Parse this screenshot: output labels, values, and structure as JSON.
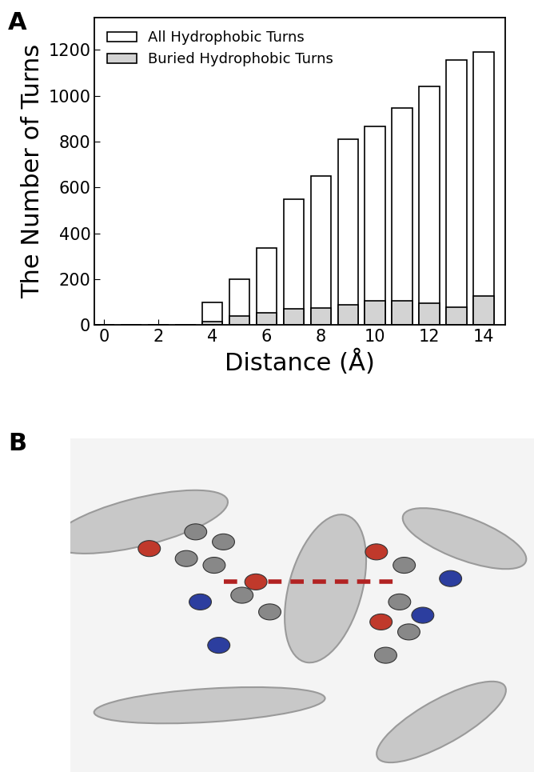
{
  "panel_labels": [
    "A",
    "B"
  ],
  "chart_data": {
    "type": "bar",
    "stacked": false,
    "legend": "upper left",
    "x": [
      0,
      1,
      2,
      3,
      4,
      5,
      6,
      7,
      8,
      9,
      10,
      11,
      12,
      13,
      14
    ],
    "x_label": "Distance (Å)",
    "y_label": "The Number of Turns",
    "series": [
      {
        "name": "All Hydrophobic Turns",
        "color": "#ffffff",
        "values": [
          0,
          0,
          0,
          2,
          100,
          200,
          335,
          550,
          650,
          810,
          865,
          945,
          1040,
          1155,
          1190
        ]
      },
      {
        "name": "Buried Hydrophobic Turns",
        "color": "#d3d3d3",
        "values": [
          0,
          0,
          0,
          0,
          15,
          40,
          55,
          70,
          75,
          88,
          105,
          105,
          95,
          78,
          128
        ]
      }
    ],
    "xlim": [
      -0.35,
      14.8
    ],
    "xticks": [
      0,
      2,
      4,
      6,
      8,
      10,
      12,
      14
    ],
    "ylim": [
      0,
      1340
    ],
    "yticks": [
      0,
      200,
      400,
      600,
      800,
      1000,
      1200
    ]
  }
}
